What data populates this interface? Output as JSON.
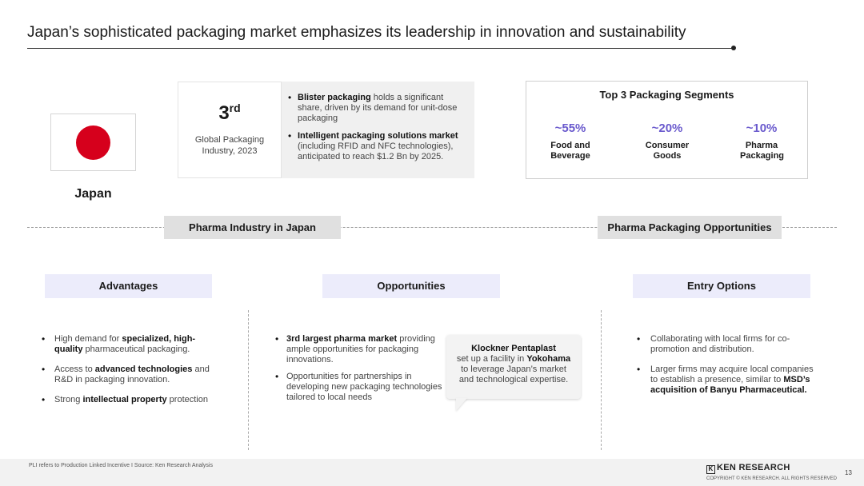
{
  "title": "Japan’s sophisticated packaging market emphasizes its leadership in innovation and sustainability",
  "country": {
    "name": "Japan",
    "flag_color": "#d6001c"
  },
  "rank": {
    "number": "3",
    "suffix": "rd",
    "desc": "Global Packaging Industry, 2023"
  },
  "market_bullets": [
    {
      "bold": "Blister packaging",
      "text": " holds a significant share, driven by its demand for unit-dose packaging"
    },
    {
      "bold": "Intelligent packaging solutions market",
      "text": " (including RFID and NFC technologies), anticipated to reach $1.2 Bn by 2025."
    }
  ],
  "segments": {
    "title": "Top 3 Packaging Segments",
    "accent": "#6a5acd",
    "items": [
      {
        "pct": "~55%",
        "label": "Food and Beverage"
      },
      {
        "pct": "~20%",
        "label": "Consumer Goods"
      },
      {
        "pct": "~10%",
        "label": "Pharma Packaging"
      }
    ]
  },
  "sections": {
    "left": "Pharma Industry in Japan",
    "right": "Pharma Packaging Opportunities"
  },
  "advantages": {
    "heading": "Advantages",
    "items": [
      {
        "pre": "High demand for ",
        "bold": "specialized, high-quality",
        "post": " pharmaceutical packaging."
      },
      {
        "pre": "Access to ",
        "bold": "advanced technologies",
        "post": " and R&D in packaging innovation."
      },
      {
        "pre": "Strong ",
        "bold": "intellectual property",
        "post": " protection"
      }
    ]
  },
  "opportunities": {
    "heading": "Opportunities",
    "items": [
      {
        "pre": "",
        "bold": "3rd largest pharma market",
        "post": " providing ample opportunities for packaging innovations."
      },
      {
        "pre": "Opportunities for partnerships in developing new packaging technologies tailored to local needs",
        "bold": "",
        "post": ""
      }
    ],
    "callout": {
      "title": "Klockner Pentaplast",
      "pre": "set up a facility in ",
      "bold": "Yokohama",
      "post": " to leverage Japan’s market and technological expertise."
    }
  },
  "entry": {
    "heading": "Entry Options",
    "items": [
      {
        "pre": "Collaborating with local firms for co-promotion and distribution.",
        "bold": "",
        "post": ""
      },
      {
        "pre": "Larger firms may acquire local companies to establish a presence, similar to ",
        "bold": "MSD’s acquisition of Banyu Pharmaceutical.",
        "post": ""
      }
    ]
  },
  "footer": {
    "note": "PLI refers to Production Linked Incentive I Source: Ken Research Analysis",
    "brand": "KEN RESEARCH",
    "copyright": "COPYRIGHT © KEN RESEARCH. ALL RIGHTS RESERVED",
    "page": "13"
  }
}
